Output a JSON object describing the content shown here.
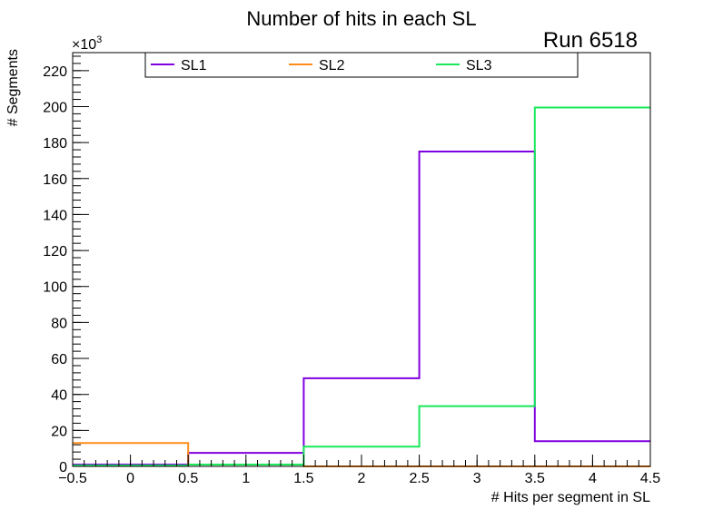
{
  "chart_data": {
    "type": "step",
    "title": "Number of hits in each SL",
    "annotation": "Run 6518",
    "xlabel": "# Hits per segment in SL",
    "ylabel": "# Segments",
    "y_exponent_label": "×10",
    "y_exponent_power": "3",
    "xlim": [
      -0.5,
      4.5
    ],
    "ylim": [
      0,
      230
    ],
    "x_ticks": [
      -0.5,
      0,
      0.5,
      1,
      1.5,
      2,
      2.5,
      3,
      3.5,
      4,
      4.5
    ],
    "x_tick_labels": [
      "−0.5",
      "0",
      "0.5",
      "1",
      "1.5",
      "2",
      "2.5",
      "3",
      "3.5",
      "4",
      "4.5"
    ],
    "y_ticks": [
      0,
      20,
      40,
      60,
      80,
      100,
      120,
      140,
      160,
      180,
      200,
      220
    ],
    "y_tick_labels": [
      "0",
      "20",
      "40",
      "60",
      "80",
      "100",
      "120",
      "140",
      "160",
      "180",
      "200",
      "220"
    ],
    "bin_edges": [
      -0.5,
      0.5,
      1.5,
      2.5,
      3.5,
      4.5
    ],
    "categories": [
      "0",
      "1",
      "2",
      "3",
      "4"
    ],
    "series": [
      {
        "name": "SL1",
        "color": "#8000e0",
        "values": [
          1,
          7.5,
          49,
          175,
          14
        ]
      },
      {
        "name": "SL2",
        "color": "#ff8c1a",
        "values": [
          13,
          1,
          0,
          0,
          0
        ]
      },
      {
        "name": "SL3",
        "color": "#19e85a",
        "values": [
          0.5,
          1,
          11,
          33.5,
          199.5
        ]
      }
    ],
    "legend_position": "top"
  }
}
